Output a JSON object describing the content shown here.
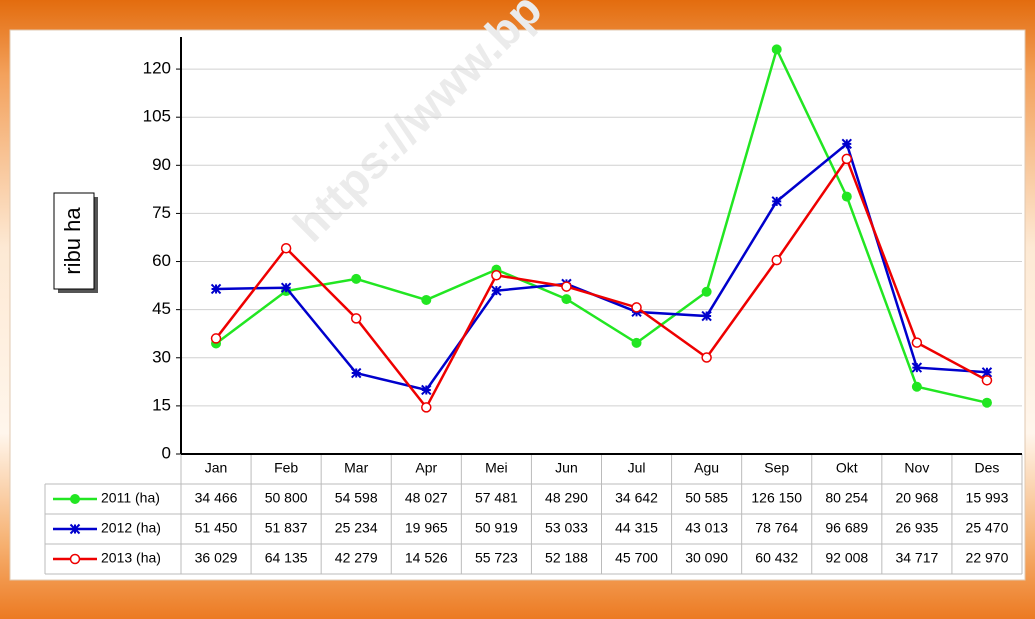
{
  "chart_data": {
    "type": "line",
    "watermark": "https://www.bp",
    "y_label": "ribu ha",
    "categories": [
      "Jan",
      "Feb",
      "Mar",
      "Apr",
      "Mei",
      "Jun",
      "Jul",
      "Agu",
      "Sep",
      "Okt",
      "Nov",
      "Des"
    ],
    "ylim": [
      0,
      130
    ],
    "yticks": [
      0,
      15,
      30,
      45,
      60,
      75,
      90,
      105,
      120
    ],
    "grid": true,
    "series": [
      {
        "name": "2011 (ha)",
        "color": "#22e622",
        "marker": "dot",
        "values": [
          34.466,
          50.8,
          54.598,
          48.027,
          57.481,
          48.29,
          34.642,
          50.585,
          126.15,
          80.254,
          20.968,
          15.993
        ],
        "value_labels": [
          "34 466",
          "50 800",
          "54 598",
          "48 027",
          "57 481",
          "48 290",
          "34 642",
          "50 585",
          "126 150",
          "80 254",
          "20 968",
          "15 993"
        ]
      },
      {
        "name": "2012 (ha)",
        "color": "#0000cc",
        "marker": "star",
        "values": [
          51.45,
          51.837,
          25.234,
          19.965,
          50.919,
          53.033,
          44.315,
          43.013,
          78.764,
          96.689,
          26.935,
          25.47
        ],
        "value_labels": [
          "51 450",
          "51 837",
          "25 234",
          "19 965",
          "50 919",
          "53 033",
          "44 315",
          "43 013",
          "78 764",
          "96 689",
          "26 935",
          "25 470"
        ]
      },
      {
        "name": "2013 (ha)",
        "color": "#ee0000",
        "marker": "ring",
        "values": [
          36.029,
          64.135,
          42.279,
          14.526,
          55.723,
          52.188,
          45.7,
          30.09,
          60.432,
          92.008,
          34.717,
          22.97
        ],
        "value_labels": [
          "36 029",
          "64 135",
          "42 279",
          "14 526",
          "55 723",
          "52 188",
          "45 700",
          "30 090",
          "60 432",
          "92 008",
          "34 717",
          "22 970"
        ]
      }
    ]
  }
}
